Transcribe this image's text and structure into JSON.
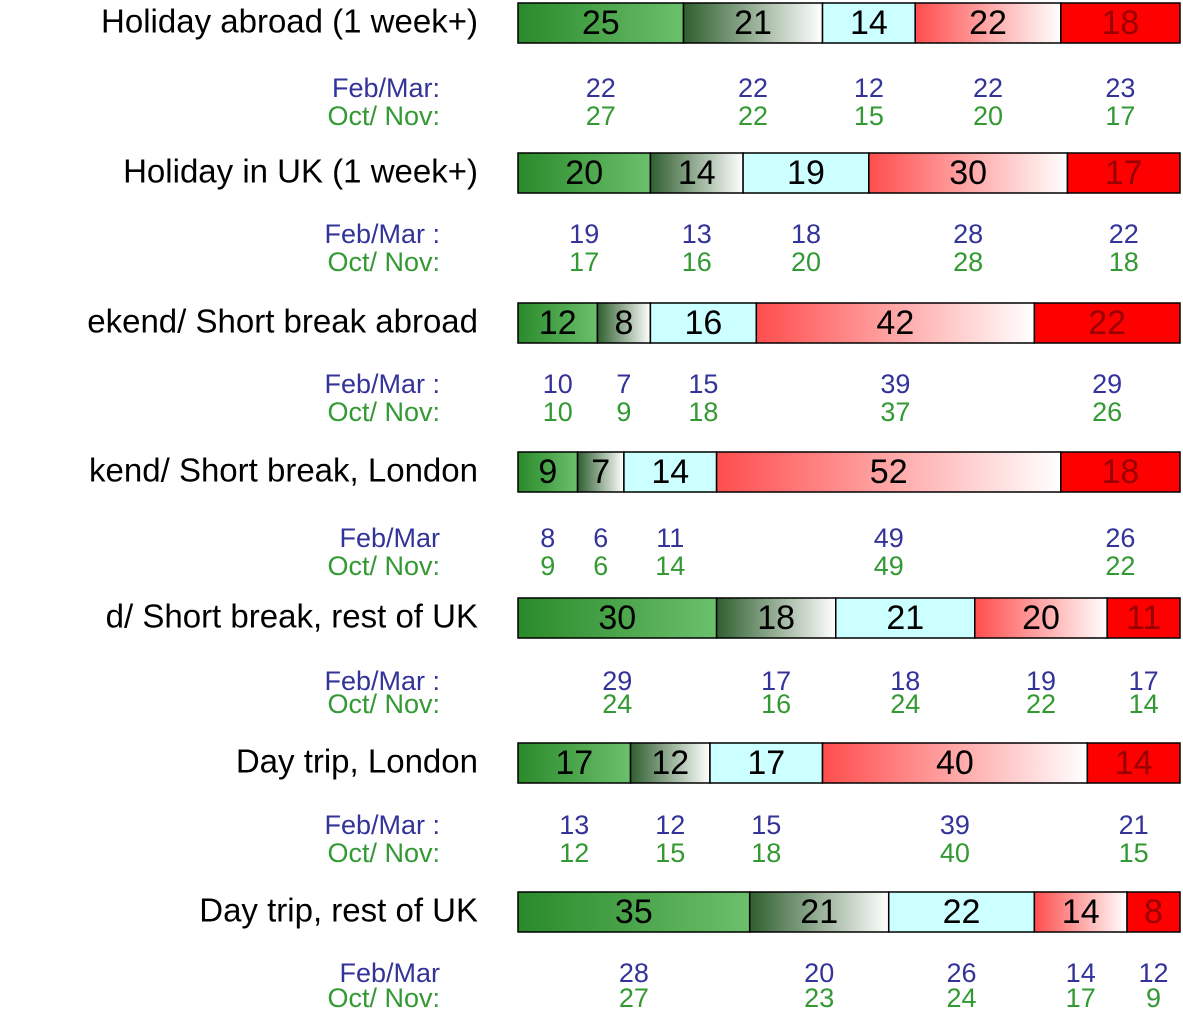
{
  "chart_data": {
    "type": "bar",
    "orientation": "horizontal",
    "stacked": true,
    "xlim": [
      0,
      100
    ],
    "categories": [
      "Holiday abroad (1 week+)",
      "Holiday in UK (1 week+)",
      "ekend/ Short break abroad",
      "kend/ Short break, London",
      "d/ Short break, rest of UK",
      "Day trip, London",
      "Day trip, rest of UK"
    ],
    "series": [
      {
        "color": "#2a8a2a",
        "gradient": [
          "#2a8a2a",
          "#6cc06c"
        ],
        "text_color": "#000000",
        "values": [
          25,
          20,
          12,
          9,
          30,
          17,
          35
        ]
      },
      {
        "color": "#2f5f2f",
        "gradient": [
          "#2f5f2f",
          "#ffffff"
        ],
        "text_color": "#000000",
        "values": [
          21,
          14,
          8,
          7,
          18,
          12,
          21
        ]
      },
      {
        "color": "#ccffff",
        "gradient": [
          "#ccffff",
          "#ccffff"
        ],
        "text_color": "#000000",
        "values": [
          14,
          19,
          16,
          14,
          21,
          17,
          22
        ]
      },
      {
        "color": "#ff4d4d",
        "gradient": [
          "#ff4d4d",
          "#ffffff"
        ],
        "text_color": "#000000",
        "values": [
          22,
          30,
          42,
          52,
          20,
          40,
          14
        ]
      },
      {
        "color": "#ff0000",
        "gradient": [
          "#ff0000",
          "#ff0000"
        ],
        "text_color": "#990000",
        "values": [
          18,
          17,
          22,
          18,
          11,
          14,
          8
        ]
      }
    ],
    "comparisons": [
      {
        "first_label": "Feb/Mar:",
        "first": [
          22,
          22,
          12,
          22,
          23
        ],
        "second_label": "Oct/ Nov:",
        "second": [
          27,
          22,
          15,
          20,
          17
        ]
      },
      {
        "first_label": "Feb/Mar :",
        "first": [
          19,
          13,
          18,
          28,
          22
        ],
        "second_label": "Oct/ Nov:",
        "second": [
          17,
          16,
          20,
          28,
          18
        ]
      },
      {
        "first_label": "Feb/Mar :",
        "first": [
          10,
          7,
          15,
          39,
          29
        ],
        "second_label": "Oct/ Nov:",
        "second": [
          10,
          9,
          18,
          37,
          26
        ]
      },
      {
        "first_label": "Feb/Mar",
        "first": [
          8,
          6,
          11,
          49,
          26
        ],
        "second_label": "Oct/ Nov:",
        "second": [
          9,
          6,
          14,
          49,
          22
        ]
      },
      {
        "first_label": "Feb/Mar :",
        "first": [
          29,
          17,
          18,
          19,
          17
        ],
        "second_label": "Oct/ Nov:",
        "second": [
          24,
          16,
          24,
          22,
          14
        ]
      },
      {
        "first_label": "Feb/Mar :",
        "first": [
          13,
          12,
          15,
          39,
          21
        ],
        "second_label": "Oct/ Nov:",
        "second": [
          12,
          15,
          18,
          40,
          15
        ]
      },
      {
        "first_label": "Feb/Mar",
        "first": [
          28,
          20,
          26,
          14,
          12
        ],
        "second_label": "Oct/ Nov:",
        "second": [
          27,
          23,
          24,
          17,
          9
        ]
      }
    ],
    "first_color": "#333399",
    "second_color": "#339933"
  }
}
